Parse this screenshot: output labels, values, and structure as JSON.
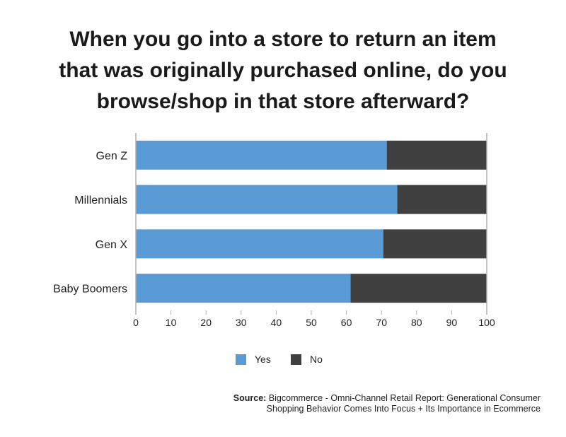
{
  "chart_data": {
    "type": "bar",
    "orientation": "horizontal",
    "stacked": true,
    "title_lines": [
      "When you go into a store to return an item",
      "that was originally purchased online, do you",
      "browse/shop in that store afterward?"
    ],
    "categories": [
      "Gen Z",
      "Millennials",
      "Gen X",
      "Baby Boomers"
    ],
    "series": [
      {
        "name": "Yes",
        "color": "#5b9bd5",
        "values": [
          71.5,
          74.5,
          70.5,
          61.2
        ]
      },
      {
        "name": "No",
        "color": "#404040",
        "values": [
          28.5,
          25.5,
          29.5,
          38.8
        ]
      }
    ],
    "xlim": [
      0,
      100
    ],
    "xticks": [
      0,
      10,
      20,
      30,
      40,
      50,
      60,
      70,
      80,
      90,
      100
    ],
    "grid": false,
    "legend_position": "bottom"
  },
  "source": {
    "label": "Source:",
    "line1": "Bigcommerce - Omni-Channel Retail Report: Generational Consumer",
    "line2": "Shopping Behavior Comes Into Focus + Its Importance in Ecommerce"
  }
}
